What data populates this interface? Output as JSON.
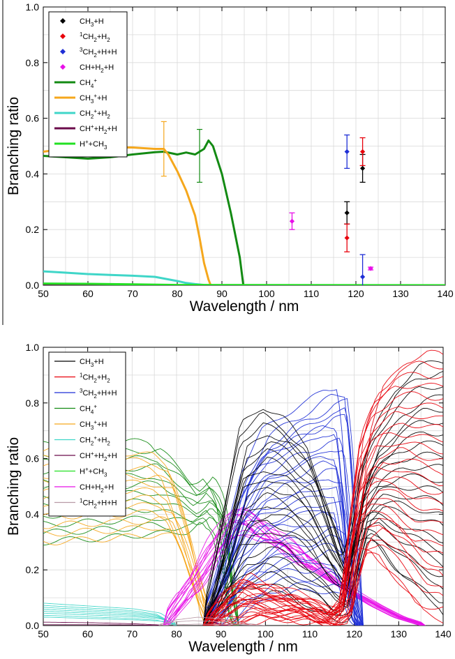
{
  "chart_data": [
    {
      "type": "scatter",
      "xlabel": "Wavelength / nm",
      "ylabel": "Branching ratio",
      "xlim": [
        50,
        140
      ],
      "ylim": [
        0,
        1.0
      ],
      "xticks": [
        "50",
        "60",
        "70",
        "80",
        "90",
        "100",
        "110",
        "120",
        "130",
        "140"
      ],
      "yticks": [
        "0.0",
        "0.2",
        "0.4",
        "0.6",
        "0.8",
        "1.0"
      ],
      "grid": true,
      "legend_position": "top-left",
      "legend": [
        {
          "label": "CH3+H",
          "kind": "marker",
          "color": "#000000"
        },
        {
          "label": "1CH2+H2",
          "kind": "marker",
          "color": "#e8000b"
        },
        {
          "label": "3CH2+H+H",
          "kind": "marker",
          "color": "#1f2fd6"
        },
        {
          "label": "CH+H2+H",
          "kind": "marker",
          "color": "#e810e8"
        },
        {
          "label": "CH4+",
          "kind": "line",
          "color": "#138a13"
        },
        {
          "label": "CH3++H",
          "kind": "line",
          "color": "#f5a71c"
        },
        {
          "label": "CH2++H2",
          "kind": "line",
          "color": "#3fd6c8"
        },
        {
          "label": "CH++H2+H",
          "kind": "line",
          "color": "#6b0b4b"
        },
        {
          "label": "H++CH3",
          "kind": "line",
          "color": "#22e022"
        }
      ],
      "points": [
        {
          "series": "CH3+H",
          "color": "#000000",
          "x": 118.0,
          "y": 0.26,
          "err": 0.04
        },
        {
          "series": "CH3+H",
          "color": "#000000",
          "x": 121.5,
          "y": 0.42,
          "err": 0.05
        },
        {
          "series": "1CH2+H2",
          "color": "#e8000b",
          "x": 118.0,
          "y": 0.17,
          "err": 0.05
        },
        {
          "series": "1CH2+H2",
          "color": "#e8000b",
          "x": 121.5,
          "y": 0.48,
          "err": 0.05
        },
        {
          "series": "3CH2+H+H",
          "color": "#1f2fd6",
          "x": 118.0,
          "y": 0.48,
          "err": 0.06
        },
        {
          "series": "3CH2+H+H",
          "color": "#1f2fd6",
          "x": 121.5,
          "y": 0.03,
          "err": 0.08
        },
        {
          "series": "CH+H2+H",
          "color": "#e810e8",
          "x": 105.7,
          "y": 0.23,
          "err": 0.03
        },
        {
          "series": "CH+H2+H",
          "color": "#e810e8",
          "x": 123.3,
          "y": 0.06,
          "err": 0.005
        }
      ],
      "curves": [
        {
          "series": "CH4+",
          "color": "#138a13",
          "x": [
            50,
            55,
            60,
            65,
            70,
            75,
            77,
            80,
            82,
            84,
            85,
            86,
            87,
            88,
            90,
            92,
            94,
            94.8,
            95,
            140
          ],
          "y": [
            0.465,
            0.46,
            0.455,
            0.46,
            0.47,
            0.478,
            0.48,
            0.47,
            0.477,
            0.47,
            0.48,
            0.49,
            0.52,
            0.5,
            0.4,
            0.26,
            0.1,
            0.0,
            0.0,
            0.0
          ],
          "errorbars": [
            {
              "x": 85.0,
              "y": 0.465,
              "err": 0.095
            }
          ]
        },
        {
          "series": "CH3++H",
          "color": "#f5a71c",
          "x": [
            50,
            55,
            60,
            65,
            70,
            75,
            77,
            78,
            80,
            82,
            84,
            85,
            86,
            87,
            87.5,
            140
          ],
          "y": [
            0.48,
            0.49,
            0.495,
            0.495,
            0.495,
            0.49,
            0.49,
            0.47,
            0.41,
            0.34,
            0.25,
            0.17,
            0.08,
            0.02,
            0.0,
            0.0
          ],
          "errorbars": [
            {
              "x": 77.0,
              "y": 0.49,
              "err": 0.098
            }
          ]
        },
        {
          "series": "CH2++H2",
          "color": "#3fd6c8",
          "x": [
            50,
            55,
            60,
            65,
            70,
            75,
            80,
            82,
            84,
            86,
            87,
            140
          ],
          "y": [
            0.05,
            0.045,
            0.04,
            0.037,
            0.034,
            0.03,
            0.015,
            0.008,
            0.004,
            0.001,
            0.0,
            0.0
          ]
        },
        {
          "series": "CH++H2+H",
          "color": "#6b0b4b",
          "x": [
            50,
            60,
            70,
            80,
            140
          ],
          "y": [
            0.004,
            0.003,
            0.001,
            0.0,
            0.0
          ]
        },
        {
          "series": "H++CH3",
          "color": "#22e022",
          "x": [
            50,
            60,
            70,
            80,
            140
          ],
          "y": [
            0.006,
            0.005,
            0.003,
            0.001,
            0.0
          ]
        }
      ]
    },
    {
      "type": "line",
      "xlabel": "Wavelength / nm",
      "ylabel": "Branching ratio",
      "xlim": [
        50,
        140
      ],
      "ylim": [
        0,
        1.0
      ],
      "xticks": [
        "50",
        "60",
        "70",
        "80",
        "90",
        "100",
        "110",
        "120",
        "130",
        "140"
      ],
      "yticks": [
        "0.0",
        "0.2",
        "0.4",
        "0.6",
        "0.8",
        "1.0"
      ],
      "grid": true,
      "legend_position": "top-left",
      "legend": [
        {
          "label": "CH3+H",
          "color": "#000000"
        },
        {
          "label": "1CH2+H2",
          "color": "#e8000b"
        },
        {
          "label": "3CH2+H+H",
          "color": "#1f2fd6"
        },
        {
          "label": "CH4+",
          "color": "#138a13"
        },
        {
          "label": "CH3++H",
          "color": "#f5a71c"
        },
        {
          "label": "CH2++H2",
          "color": "#3fd6c8"
        },
        {
          "label": "CH++H2+H",
          "color": "#6b0b4b"
        },
        {
          "label": "H++CH3",
          "color": "#22e022"
        },
        {
          "label": "CH+H2+H",
          "color": "#e810e8"
        },
        {
          "label": "1CH2+H+H",
          "color": "#b89aa6"
        }
      ],
      "series": [
        {
          "label": "CH4+",
          "color": "#138a13",
          "count": 12,
          "x": [
            50,
            60,
            70,
            75,
            80,
            84,
            86,
            87,
            88,
            89,
            90,
            91,
            92,
            93,
            94
          ],
          "y_range_low": [
            0.3,
            0.31,
            0.32,
            0.33,
            0.33,
            0.34,
            0.36,
            0.37,
            0.34,
            0.33,
            0.3,
            0.2,
            0.05,
            0.01,
            0.0
          ],
          "y_range_high": [
            0.65,
            0.65,
            0.66,
            0.66,
            0.58,
            0.5,
            0.52,
            0.54,
            0.52,
            0.49,
            0.44,
            0.34,
            0.15,
            0.03,
            0.0
          ]
        },
        {
          "label": "CH3++H",
          "color": "#f5a71c",
          "count": 12,
          "x": [
            50,
            60,
            70,
            75,
            78,
            80,
            82,
            84,
            86,
            87,
            88
          ],
          "y_range_low": [
            0.3,
            0.31,
            0.32,
            0.33,
            0.32,
            0.26,
            0.18,
            0.1,
            0.04,
            0.01,
            0.0
          ],
          "y_range_high": [
            0.63,
            0.63,
            0.62,
            0.61,
            0.58,
            0.49,
            0.38,
            0.24,
            0.1,
            0.03,
            0.0
          ]
        },
        {
          "label": "CH2++H2",
          "color": "#3fd6c8",
          "count": 8,
          "x": [
            50,
            60,
            70,
            76,
            78,
            80
          ],
          "y_range_low": [
            0.03,
            0.025,
            0.02,
            0.015,
            0.008,
            0.0
          ],
          "y_range_high": [
            0.08,
            0.07,
            0.06,
            0.045,
            0.025,
            0.0
          ]
        },
        {
          "label": "CH++H2+H",
          "color": "#6b0b4b",
          "count": 2,
          "x": [
            50,
            60,
            70,
            78
          ],
          "y_range_low": [
            0.003,
            0.003,
            0.002,
            0.0
          ],
          "y_range_high": [
            0.012,
            0.01,
            0.006,
            0.0
          ]
        },
        {
          "label": "CH+H2+H",
          "color": "#e810e8",
          "count": 14,
          "x": [
            77,
            80,
            84,
            88,
            92,
            94,
            96,
            100,
            105,
            110,
            115,
            120,
            125,
            130,
            136
          ],
          "y_range_low": [
            0.0,
            0.05,
            0.12,
            0.22,
            0.3,
            0.33,
            0.33,
            0.29,
            0.25,
            0.2,
            0.15,
            0.11,
            0.07,
            0.03,
            0.0
          ],
          "y_range_high": [
            0.0,
            0.09,
            0.18,
            0.3,
            0.4,
            0.43,
            0.42,
            0.37,
            0.31,
            0.25,
            0.18,
            0.12,
            0.07,
            0.03,
            0.0
          ]
        },
        {
          "label": "3CH2+H+H",
          "color": "#1f2fd6",
          "count": 28,
          "x": [
            86,
            90,
            95,
            100,
            105,
            110,
            114,
            117,
            118,
            120,
            121,
            122
          ],
          "y_range_low": [
            0.0,
            0.0,
            0.05,
            0.1,
            0.12,
            0.12,
            0.13,
            0.1,
            0.06,
            0.02,
            0.0,
            0.0
          ],
          "y_range_high": [
            0.0,
            0.2,
            0.55,
            0.7,
            0.76,
            0.8,
            0.85,
            0.86,
            0.7,
            0.2,
            0.05,
            0.0
          ]
        },
        {
          "label": "CH3+H",
          "color": "#000000",
          "count": 22,
          "x": [
            86,
            90,
            95,
            100,
            105,
            110,
            115,
            118,
            120,
            122,
            125,
            130,
            135,
            140
          ],
          "y_range_low": [
            0.0,
            0.05,
            0.1,
            0.12,
            0.1,
            0.05,
            0.01,
            0.03,
            0.2,
            0.3,
            0.28,
            0.18,
            0.1,
            0.05
          ],
          "y_range_high": [
            0.0,
            0.3,
            0.72,
            0.79,
            0.74,
            0.65,
            0.4,
            0.25,
            0.35,
            0.55,
            0.7,
            0.85,
            0.93,
            0.95
          ]
        },
        {
          "label": "1CH2+H2",
          "color": "#e8000b",
          "count": 26,
          "x": [
            86,
            90,
            95,
            100,
            105,
            110,
            115,
            118,
            120,
            122,
            125,
            130,
            135,
            140
          ],
          "y_range_low": [
            0.0,
            0.0,
            0.01,
            0.02,
            0.02,
            0.01,
            0.0,
            0.02,
            0.15,
            0.25,
            0.25,
            0.15,
            0.05,
            0.02
          ],
          "y_range_high": [
            0.0,
            0.1,
            0.18,
            0.15,
            0.12,
            0.1,
            0.05,
            0.1,
            0.42,
            0.7,
            0.85,
            0.95,
            0.98,
            0.97
          ]
        },
        {
          "label": "1CH2+H+H",
          "color": "#b89aa6",
          "count": 3,
          "x": [
            76,
            80,
            85,
            90,
            95,
            100
          ],
          "y_range_low": [
            0.0,
            0.003,
            0.005,
            0.004,
            0.002,
            0.0
          ],
          "y_range_high": [
            0.0,
            0.02,
            0.03,
            0.025,
            0.01,
            0.0
          ]
        }
      ]
    }
  ]
}
